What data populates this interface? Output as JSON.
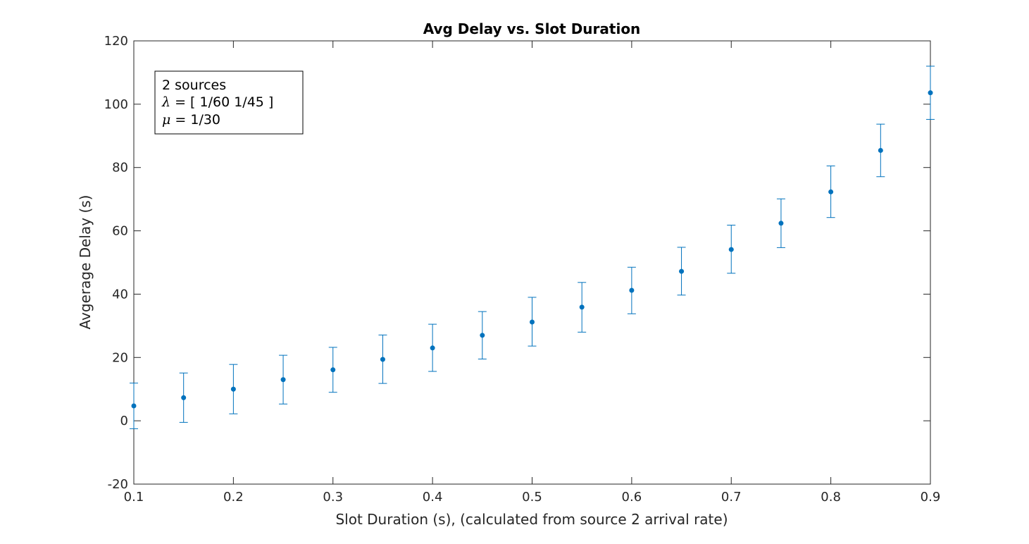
{
  "chart_data": {
    "type": "scatter",
    "title": "Avg Delay vs. Slot Duration",
    "xlabel": "Slot Duration (s), (calculated from source 2 arrival rate)",
    "ylabel": "Avgerage Delay (s)",
    "xlim": [
      0.1,
      0.9
    ],
    "ylim": [
      -20,
      120
    ],
    "xticks": [
      0.1,
      0.2,
      0.3,
      0.4,
      0.5,
      0.6,
      0.7,
      0.8,
      0.9
    ],
    "xtick_labels": [
      "0.1",
      "0.2",
      "0.3",
      "0.4",
      "0.5",
      "0.6",
      "0.7",
      "0.8",
      "0.9"
    ],
    "yticks": [
      -20,
      0,
      20,
      40,
      60,
      80,
      100,
      120
    ],
    "ytick_labels": [
      "-20",
      "0",
      "20",
      "40",
      "60",
      "80",
      "100",
      "120"
    ],
    "grid": false,
    "color": "#0072BD",
    "annotation": {
      "placement": "top-left",
      "lines": [
        {
          "symbol": "",
          "text": "2 sources"
        },
        {
          "symbol": "λ",
          "text": " = [ 1/60 1/45 ]"
        },
        {
          "symbol": "μ",
          "text": " = 1/30"
        }
      ]
    },
    "series": [
      {
        "x": [
          0.1,
          0.15,
          0.2,
          0.25,
          0.3,
          0.35,
          0.4,
          0.45,
          0.5,
          0.55,
          0.6,
          0.65,
          0.7,
          0.75,
          0.8,
          0.85,
          0.9
        ],
        "y": [
          4.7,
          7.3,
          10.0,
          13.0,
          16.1,
          19.4,
          23.0,
          27.0,
          31.2,
          35.9,
          41.2,
          47.2,
          54.1,
          62.4,
          72.3,
          85.4,
          103.6
        ],
        "lower": [
          -2.5,
          -0.5,
          2.2,
          5.3,
          9.0,
          11.8,
          15.6,
          19.5,
          23.6,
          28.0,
          33.8,
          39.7,
          46.6,
          54.7,
          64.2,
          77.1,
          95.2
        ],
        "upper": [
          11.9,
          15.1,
          17.8,
          20.7,
          23.2,
          27.1,
          30.5,
          34.5,
          39.0,
          43.7,
          48.5,
          54.8,
          61.8,
          70.1,
          80.5,
          93.7,
          112.0
        ]
      }
    ]
  }
}
